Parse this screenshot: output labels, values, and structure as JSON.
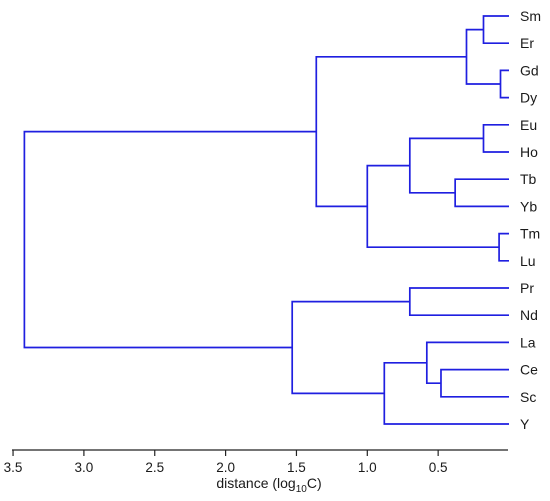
{
  "dendrogram": {
    "type": "dendrogram",
    "orientation": "left",
    "link_color": "#1f1fe0",
    "xlim": [
      3.5,
      0.0
    ],
    "x_ticks": [
      {
        "value": 3.5,
        "label": "3.5"
      },
      {
        "value": 3.0,
        "label": "3.0"
      },
      {
        "value": 2.5,
        "label": "2.5"
      },
      {
        "value": 2.0,
        "label": "2.0"
      },
      {
        "value": 1.5,
        "label": "1.5"
      },
      {
        "value": 1.0,
        "label": "1.0"
      },
      {
        "value": 0.5,
        "label": "0.5"
      }
    ],
    "xlabel": {
      "main": "distance (log",
      "sub": "10",
      "end": "C)"
    },
    "leaves": [
      "Sm",
      "Er",
      "Gd",
      "Dy",
      "Eu",
      "Ho",
      "Tb",
      "Yb",
      "Tm",
      "Lu",
      "Pr",
      "Nd",
      "La",
      "Ce",
      "Sc",
      "Y"
    ],
    "merges": [
      {
        "id": "m_sm_er",
        "left": "Sm",
        "right": "Er",
        "height": 0.18
      },
      {
        "id": "m_gd_dy",
        "left": "Gd",
        "right": "Dy",
        "height": 0.06
      },
      {
        "id": "m_sm_dy",
        "left": "m_sm_er",
        "right": "m_gd_dy",
        "height": 0.3
      },
      {
        "id": "m_eu_ho",
        "left": "Eu",
        "right": "Ho",
        "height": 0.18
      },
      {
        "id": "m_tb_yb",
        "left": "Tb",
        "right": "Yb",
        "height": 0.38
      },
      {
        "id": "m_eu_yb",
        "left": "m_eu_ho",
        "right": "m_tb_yb",
        "height": 0.7
      },
      {
        "id": "m_tm_lu",
        "left": "Tm",
        "right": "Lu",
        "height": 0.07
      },
      {
        "id": "m_eu_lu",
        "left": "m_eu_yb",
        "right": "m_tm_lu",
        "height": 1.0
      },
      {
        "id": "m_sm_lu",
        "left": "m_sm_dy",
        "right": "m_eu_lu",
        "height": 1.36
      },
      {
        "id": "m_pr_nd",
        "left": "Pr",
        "right": "Nd",
        "height": 0.7
      },
      {
        "id": "m_ce_sc",
        "left": "Ce",
        "right": "Sc",
        "height": 0.48
      },
      {
        "id": "m_la_sc",
        "left": "La",
        "right": "m_ce_sc",
        "height": 0.58
      },
      {
        "id": "m_la_y",
        "left": "m_la_sc",
        "right": "Y",
        "height": 0.88
      },
      {
        "id": "m_pr_y",
        "left": "m_pr_nd",
        "right": "m_la_y",
        "height": 1.53
      },
      {
        "id": "m_root",
        "left": "m_sm_lu",
        "right": "m_pr_y",
        "height": 3.42
      }
    ]
  }
}
